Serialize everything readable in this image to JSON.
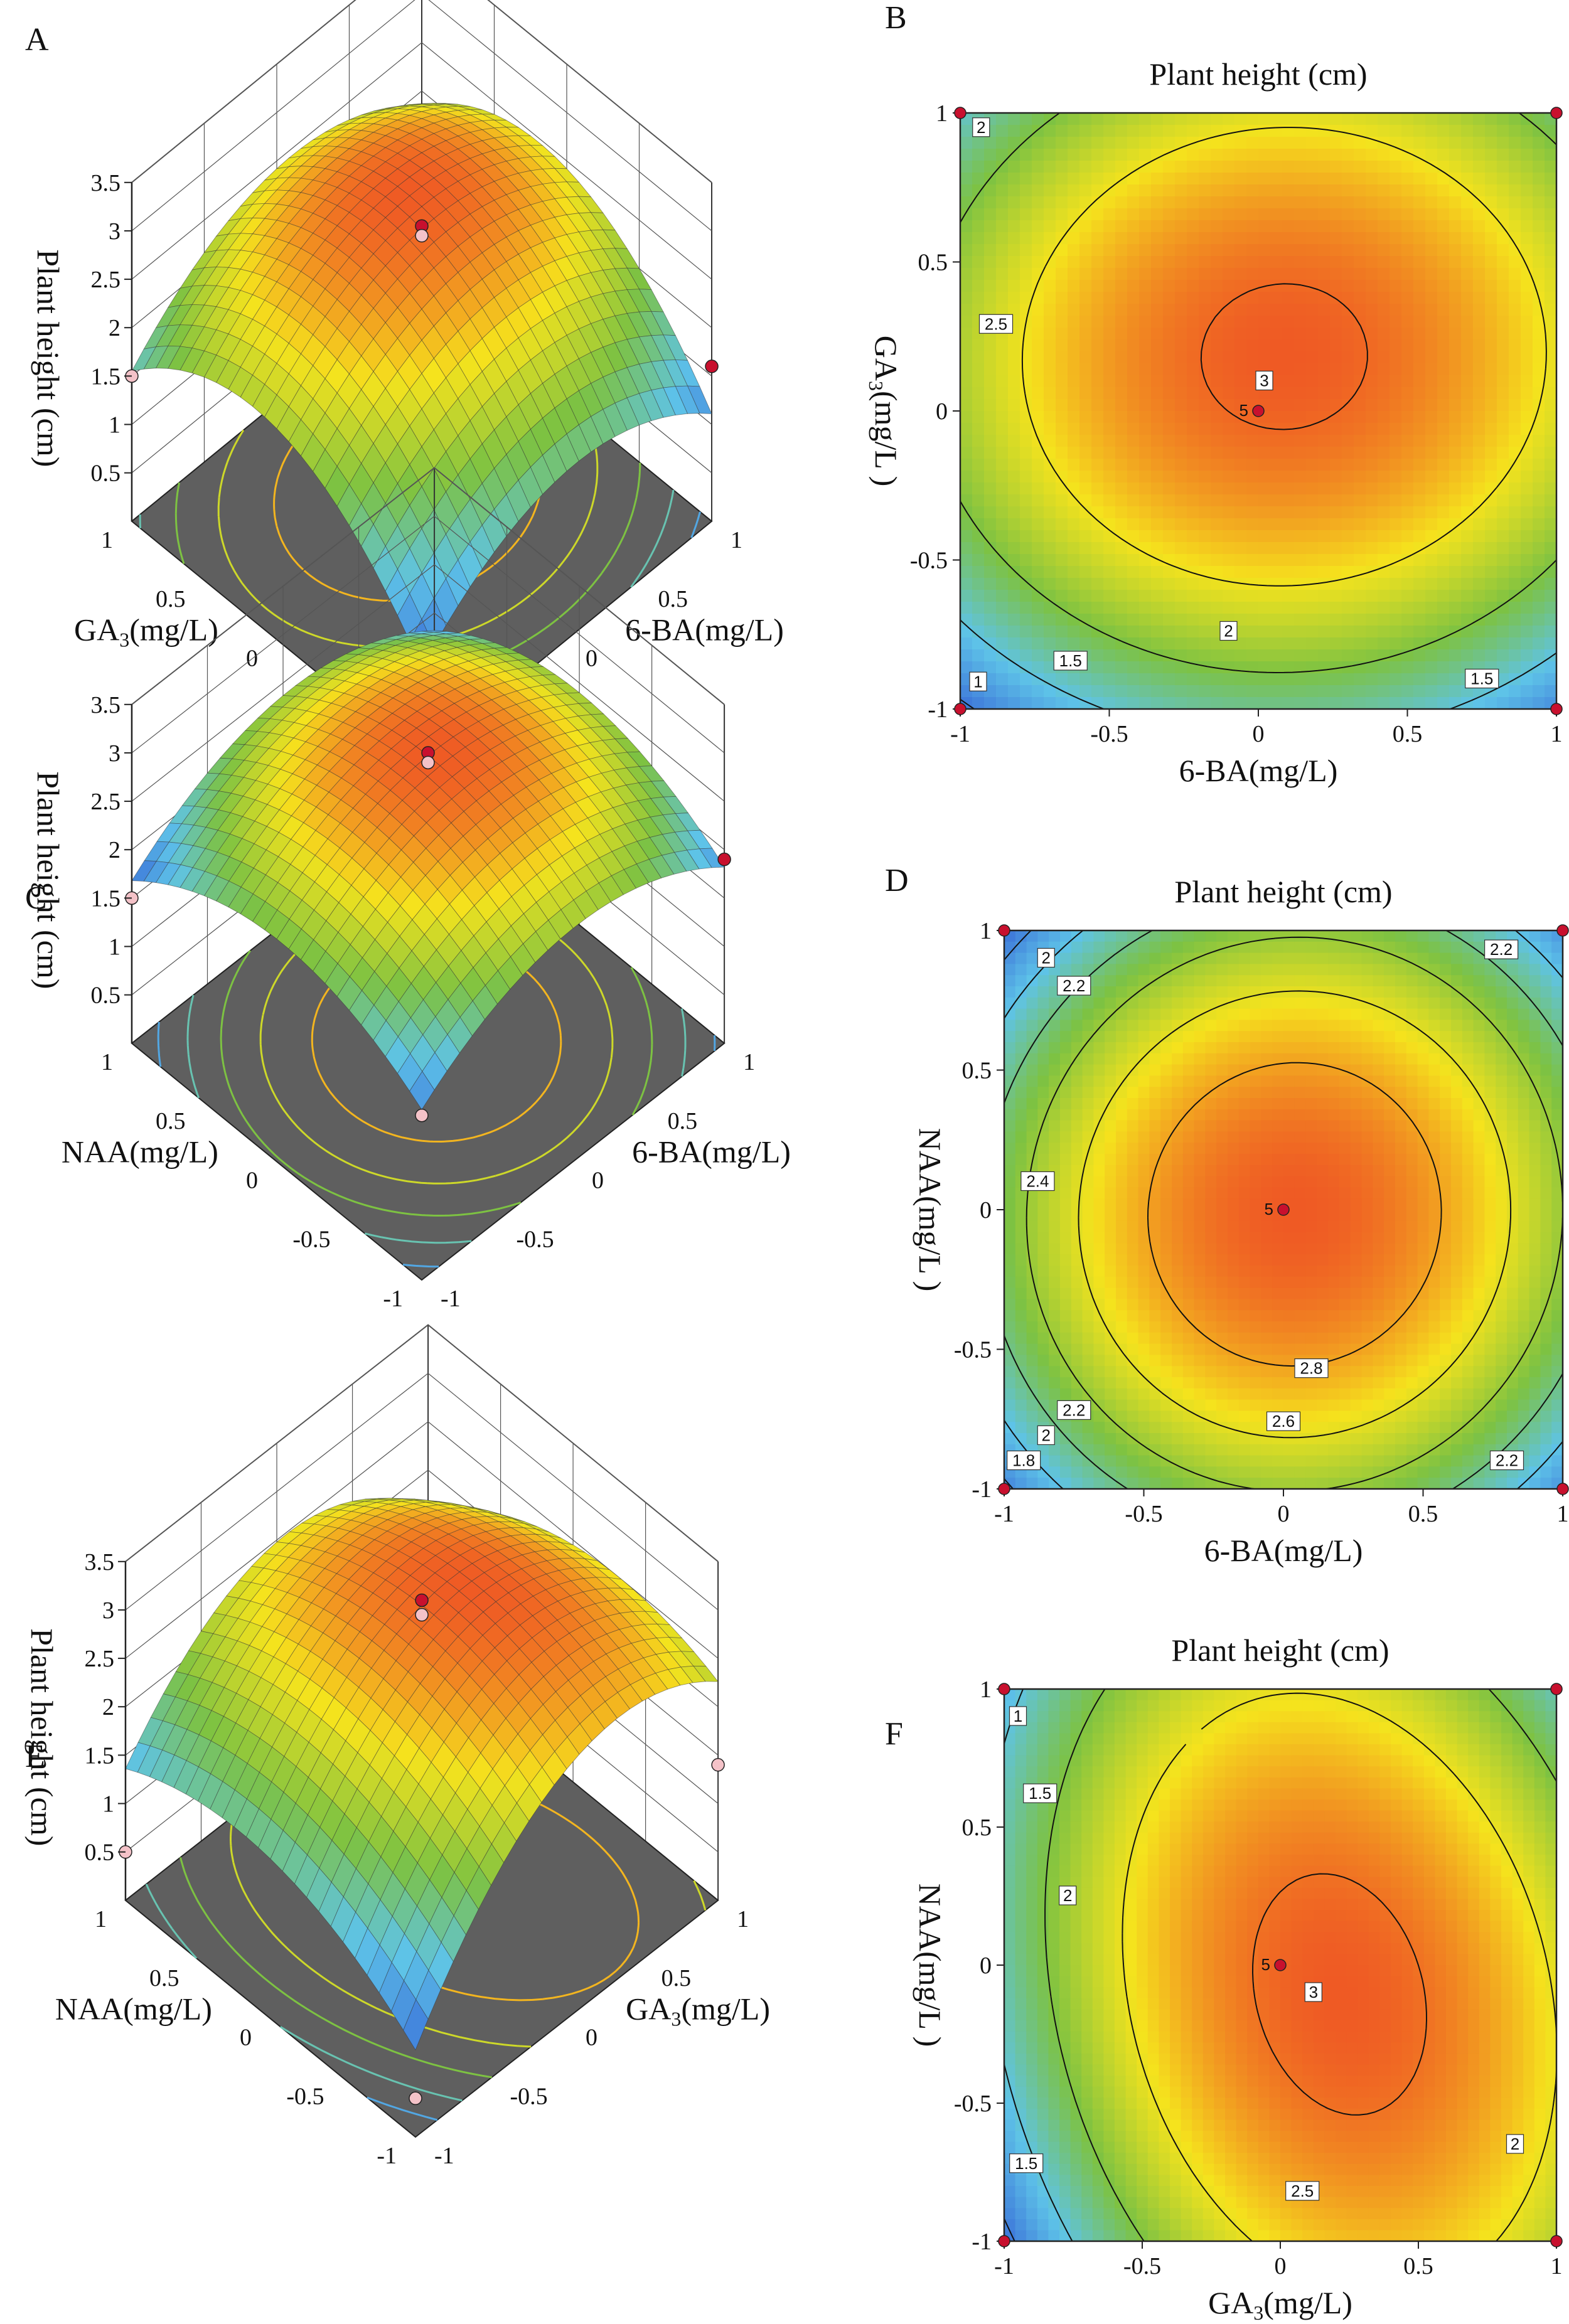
{
  "figure": {
    "panel_letters": [
      "A",
      "B",
      "C",
      "D",
      "E",
      "F"
    ],
    "center_point_label": "5",
    "colors": {
      "low": "#3a6fd8",
      "mid_low": "#5ec3e8",
      "mid": "#7dc242",
      "mid_high": "#f5e31d",
      "high": "#ef5a24",
      "floor": "#5f5f5f",
      "design_point": "#c8102e",
      "design_point_low": "#f4c2c8"
    }
  },
  "chart_data": [
    {
      "id": "A",
      "type": "surface3d",
      "kind": "3d",
      "zlabel": "Plant height (cm)",
      "xlabel": "6-BA(mg/L)",
      "ylabel": "GA3(mg/L)",
      "ylabel_main": "GA",
      "ylabel_sub": "3",
      "ylabel_rest": "(mg/L)",
      "x_ticks": [
        "-1",
        "-0.5",
        "0",
        "0.5",
        "1"
      ],
      "y_ticks": [
        "-1",
        "-0.5",
        "0",
        "0.5",
        "1"
      ],
      "z_ticks": [
        "0.5",
        "1",
        "1.5",
        "2",
        "2.5",
        "3",
        "3.5"
      ],
      "zlim": [
        0,
        3.5
      ],
      "model": {
        "b0": 3.02,
        "bx": 0.12,
        "by": 0.34,
        "bxy": 0.03,
        "bxx": -0.72,
        "byy": -0.94
      },
      "design_points": [
        {
          "x": 0,
          "y": 0,
          "z": 3.05
        },
        {
          "x": 0,
          "y": 0,
          "z": 2.95
        },
        {
          "x": -1,
          "y": 1,
          "z": 1.5
        },
        {
          "x": 1,
          "y": -1,
          "z": 1.6
        },
        {
          "x": -1,
          "y": -1,
          "z": 0.9
        }
      ]
    },
    {
      "id": "B",
      "type": "contour",
      "kind": "2d",
      "title": "Plant  height  (cm)",
      "xlabel": "6-BA(mg/L)",
      "ylabel": "GA3(mg/L)",
      "ylabel_main": "GA",
      "ylabel_sub": "3",
      "ylabel_rest": "(mg/L )",
      "x_ticks": [
        "-1",
        "-0.5",
        "0",
        "0.5",
        "1"
      ],
      "y_ticks": [
        "-1",
        "-0.5",
        "0",
        "0.5",
        "1"
      ],
      "xlim": [
        -1,
        1
      ],
      "ylim": [
        -1,
        1
      ],
      "model": {
        "b0": 3.02,
        "bx": 0.12,
        "by": 0.34,
        "bxy": 0.03,
        "bxx": -0.72,
        "byy": -0.94
      },
      "contour_levels": [
        1,
        1.5,
        2,
        2.5,
        3
      ],
      "contour_labels": [
        {
          "text": "2",
          "x": -0.93,
          "y": 0.95
        },
        {
          "text": "2.5",
          "x": -0.88,
          "y": 0.29
        },
        {
          "text": "3",
          "x": 0.02,
          "y": 0.1
        },
        {
          "text": "2",
          "x": -0.1,
          "y": -0.74
        },
        {
          "text": "1.5",
          "x": -0.63,
          "y": -0.84
        },
        {
          "text": "1.5",
          "x": 0.75,
          "y": -0.9
        },
        {
          "text": "1",
          "x": -0.94,
          "y": -0.91
        }
      ],
      "center_point": {
        "x": 0,
        "y": 0
      },
      "corner_points": [
        {
          "x": -1,
          "y": 1
        },
        {
          "x": 1,
          "y": 1
        },
        {
          "x": -1,
          "y": -1
        },
        {
          "x": 1,
          "y": -1
        }
      ]
    },
    {
      "id": "C",
      "type": "surface3d",
      "kind": "3d",
      "zlabel": "Plant height (cm)",
      "xlabel": "6-BA(mg/L)",
      "ylabel": "NAA(mg/L)",
      "ylabel_main": "NAA(mg/L)",
      "ylabel_sub": "",
      "ylabel_rest": "",
      "x_ticks": [
        "-1",
        "-0.5",
        "0",
        "0.5",
        "1"
      ],
      "y_ticks": [
        "-1",
        "-0.5",
        "0",
        "0.5",
        "1"
      ],
      "z_ticks": [
        "0.5",
        "1",
        "1.5",
        "2",
        "2.5",
        "3",
        "3.5"
      ],
      "zlim": [
        0,
        3.5
      ],
      "model": {
        "b0": 2.97,
        "bx": 0.05,
        "by": -0.02,
        "bxy": 0.02,
        "bxx": -0.62,
        "byy": -0.58
      },
      "design_points": [
        {
          "x": 0,
          "y": 0,
          "z": 3.0
        },
        {
          "x": 0,
          "y": 0,
          "z": 2.9
        },
        {
          "x": -1,
          "y": 1,
          "z": 1.5
        },
        {
          "x": 1,
          "y": -1,
          "z": 1.9
        },
        {
          "x": -1,
          "y": -1,
          "z": 1.7
        }
      ]
    },
    {
      "id": "D",
      "type": "contour",
      "kind": "2d",
      "title": "Plant   height  (cm)",
      "xlabel": "6-BA(mg/L)",
      "ylabel": "NAA(mg/L)",
      "ylabel_main": "NAA(mg/L",
      "ylabel_sub": "",
      "ylabel_rest": " )",
      "x_ticks": [
        "-1",
        "-0.5",
        "0",
        "0.5",
        "1"
      ],
      "y_ticks": [
        "-1",
        "-0.5",
        "0",
        "0.5",
        "1"
      ],
      "xlim": [
        -1,
        1
      ],
      "ylim": [
        -1,
        1
      ],
      "model": {
        "b0": 2.97,
        "bx": 0.05,
        "by": -0.02,
        "bxy": 0.02,
        "bxx": -0.62,
        "byy": -0.58
      },
      "contour_levels": [
        1.8,
        2,
        2.2,
        2.4,
        2.6,
        2.8
      ],
      "contour_labels": [
        {
          "text": "2",
          "x": -0.85,
          "y": 0.9
        },
        {
          "text": "2.2",
          "x": -0.75,
          "y": 0.8
        },
        {
          "text": "2.2",
          "x": 0.78,
          "y": 0.93
        },
        {
          "text": "2.4",
          "x": -0.88,
          "y": 0.1
        },
        {
          "text": "2.8",
          "x": 0.1,
          "y": -0.57
        },
        {
          "text": "2.6",
          "x": 0.0,
          "y": -0.76
        },
        {
          "text": "2.2",
          "x": -0.75,
          "y": -0.72
        },
        {
          "text": "2",
          "x": -0.85,
          "y": -0.81
        },
        {
          "text": "1.8",
          "x": -0.93,
          "y": -0.9
        },
        {
          "text": "2.2",
          "x": 0.8,
          "y": -0.9
        }
      ],
      "center_point": {
        "x": 0,
        "y": 0
      },
      "corner_points": [
        {
          "x": -1,
          "y": 1
        },
        {
          "x": 1,
          "y": 1
        },
        {
          "x": -1,
          "y": -1
        },
        {
          "x": 1,
          "y": -1
        }
      ]
    },
    {
      "id": "E",
      "type": "surface3d",
      "kind": "3d",
      "zlabel": "Plant height (cm)",
      "xlabel": "GA3(mg/L)",
      "ylabel": "NAA(mg/L)",
      "xlabel_main": "GA",
      "xlabel_sub": "3",
      "xlabel_rest": "(mg/L)",
      "ylabel_main": "NAA(mg/L)",
      "ylabel_sub": "",
      "ylabel_rest": "",
      "x_ticks": [
        "-1",
        "-0.5",
        "0",
        "0.5",
        "1"
      ],
      "y_ticks": [
        "-1",
        "-0.5",
        "0",
        "0.5",
        "1"
      ],
      "z_ticks": [
        "0.5",
        "1",
        "1.5",
        "2",
        "2.5",
        "3",
        "3.5"
      ],
      "zlim": [
        0,
        3.5
      ],
      "model": {
        "b0": 3.05,
        "bx": 0.4,
        "by": -0.05,
        "bxy": -0.28,
        "bxx": -1.0,
        "byy": -0.52
      },
      "design_points": [
        {
          "x": 0,
          "y": 0,
          "z": 3.1
        },
        {
          "x": 0,
          "y": 0,
          "z": 2.95
        },
        {
          "x": -1,
          "y": 1,
          "z": 0.5
        },
        {
          "x": 1,
          "y": -1,
          "z": 1.4
        },
        {
          "x": -1,
          "y": -1,
          "z": 0.4
        }
      ]
    },
    {
      "id": "F",
      "type": "contour",
      "kind": "2d",
      "title": "Plant    height (cm)",
      "xlabel": "GA3(mg/L)",
      "ylabel": "NAA(mg/L)",
      "xlabel_main": "GA",
      "xlabel_sub": "3",
      "xlabel_rest": "(mg/L)",
      "ylabel_main": "NAA(mg/L",
      "ylabel_sub": "",
      "ylabel_rest": " )",
      "x_ticks": [
        "-1",
        "-0.5",
        "0",
        "0.5",
        "1"
      ],
      "y_ticks": [
        "-1",
        "-0.5",
        "0",
        "0.5",
        "1"
      ],
      "xlim": [
        -1,
        1
      ],
      "ylim": [
        -1,
        1
      ],
      "model": {
        "b0": 3.05,
        "bx": 0.4,
        "by": -0.05,
        "bxy": -0.28,
        "bxx": -1.0,
        "byy": -0.52
      },
      "contour_levels": [
        1,
        1.5,
        2,
        2.5,
        3
      ],
      "contour_labels": [
        {
          "text": "1",
          "x": -0.95,
          "y": 0.9
        },
        {
          "text": "1.5",
          "x": -0.87,
          "y": 0.62
        },
        {
          "text": "2",
          "x": -0.77,
          "y": 0.25
        },
        {
          "text": "3",
          "x": 0.12,
          "y": -0.1
        },
        {
          "text": "1.5",
          "x": -0.92,
          "y": -0.72
        },
        {
          "text": "2.5",
          "x": 0.08,
          "y": -0.82
        },
        {
          "text": "2",
          "x": 0.85,
          "y": -0.65
        }
      ],
      "center_point": {
        "x": 0,
        "y": 0
      },
      "corner_points": [
        {
          "x": -1,
          "y": 1
        },
        {
          "x": 1,
          "y": 1
        },
        {
          "x": -1,
          "y": -1
        },
        {
          "x": 1,
          "y": -1
        }
      ]
    }
  ]
}
